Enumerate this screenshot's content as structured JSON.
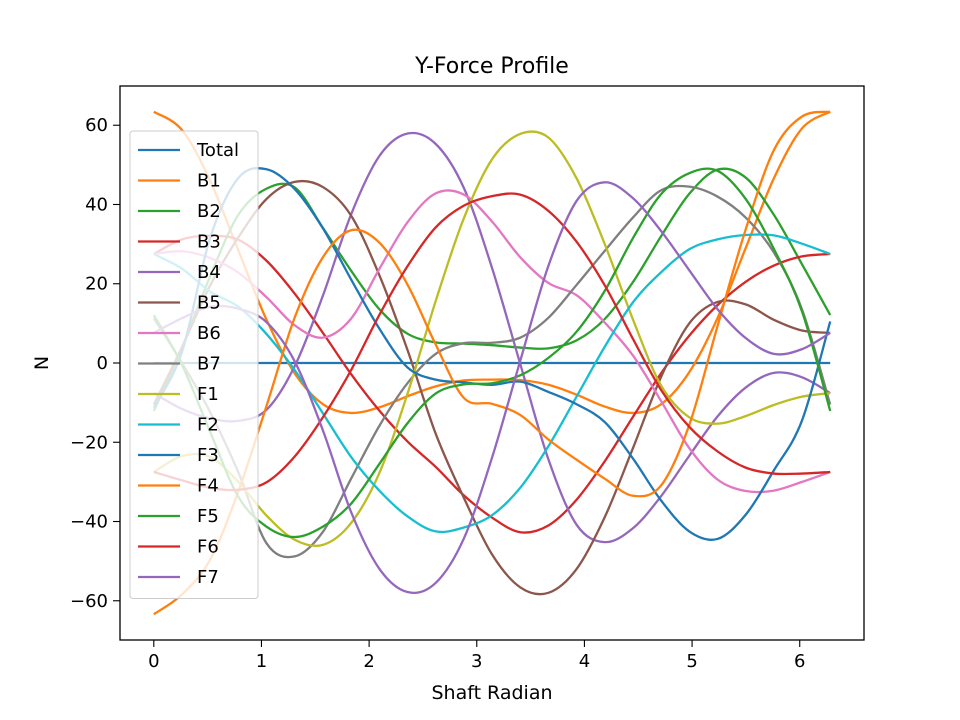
{
  "chart_data": {
    "type": "line",
    "title": "Y-Force Profile",
    "xlabel": "Shaft Radian",
    "ylabel": "N",
    "xlim": [
      -0.314,
      6.597
    ],
    "ylim": [
      -69.9,
      69.9
    ],
    "xticks": [
      0,
      1,
      2,
      3,
      4,
      5,
      6
    ],
    "yticks": [
      -60,
      -40,
      -20,
      0,
      20,
      40,
      60
    ],
    "xtick_labels": [
      "0",
      "1",
      "2",
      "3",
      "4",
      "5",
      "6"
    ],
    "ytick_labels": [
      "−60",
      "−40",
      "−20",
      "0",
      "20",
      "40",
      "60"
    ],
    "grid": false,
    "legend_position": "upper-left",
    "x": [
      0.0,
      0.2618,
      0.5236,
      0.7854,
      1.0472,
      1.309,
      1.5708,
      1.8326,
      2.0944,
      2.3562,
      2.618,
      2.8798,
      3.1416,
      3.4034,
      3.6652,
      3.927,
      4.1888,
      4.4506,
      4.7124,
      4.9742,
      5.236,
      5.4978,
      5.7596,
      6.0214,
      6.2832
    ],
    "series": [
      {
        "name": "Total",
        "color": "#1f77b4",
        "values": [
          0,
          0,
          0,
          0,
          0,
          0,
          0,
          0,
          0,
          0,
          0,
          0,
          0,
          0,
          0,
          0,
          0,
          0,
          0,
          0,
          0,
          0,
          0,
          0,
          0
        ]
      },
      {
        "name": "B1",
        "color": "#ff7f0e",
        "values": [
          63.4,
          58.8,
          46.0,
          28.4,
          10.9,
          -2.6,
          -10.4,
          -12.6,
          -11.2,
          -8.4,
          -5.9,
          -4.4,
          -4.2,
          -4.3,
          -5.5,
          -8.0,
          -11.0,
          -12.6,
          -10.4,
          -2.3,
          11.3,
          29.0,
          46.6,
          59.2,
          63.4
        ]
      },
      {
        "name": "B2",
        "color": "#2ca02c",
        "values": [
          -12.1,
          3.9,
          21.9,
          37.4,
          44.0,
          44.3,
          34.1,
          23.3,
          13.6,
          7.4,
          5.2,
          4.9,
          4.5,
          3.9,
          3.7,
          5.7,
          11.1,
          20.4,
          32.0,
          42.7,
          48.8,
          46.8,
          37.4,
          24.9,
          12.1
        ]
      },
      {
        "name": "B3",
        "color": "#d62728",
        "values": [
          27.5,
          31.2,
          32.1,
          31.1,
          25.8,
          17.5,
          7.6,
          -2.8,
          -12.0,
          -19.8,
          -26.2,
          -33.4,
          -39.0,
          -42.7,
          -41.0,
          -34.5,
          -24.8,
          -13.6,
          -2.6,
          6.9,
          14.6,
          20.5,
          24.6,
          26.9,
          27.5
        ]
      },
      {
        "name": "B4",
        "color": "#9467bd",
        "values": [
          -7.6,
          -11.6,
          -14.0,
          -14.6,
          -11.8,
          -0.8,
          17.0,
          37.5,
          52.2,
          57.9,
          55.3,
          44.2,
          24.0,
          -0.2,
          -24.3,
          -40.8,
          -45.2,
          -41.7,
          -33.6,
          -23.4,
          -13.5,
          -6.2,
          -2.5,
          -3.6,
          -7.6
        ]
      },
      {
        "name": "B5",
        "color": "#8c564b",
        "values": [
          -10.5,
          4.0,
          19.6,
          31.7,
          41.4,
          45.7,
          44.4,
          37.2,
          22.2,
          3.3,
          -17.8,
          -34.0,
          -48.3,
          -56.6,
          -58.0,
          -52.0,
          -38.9,
          -21.5,
          -3.5,
          10.0,
          15.4,
          14.8,
          10.9,
          8.2,
          7.6
        ]
      },
      {
        "name": "B6",
        "color": "#e377c2",
        "values": [
          27.5,
          28.2,
          26.5,
          22.8,
          16.6,
          9.5,
          6.4,
          11.2,
          23.7,
          35.5,
          42.8,
          42.5,
          35.7,
          26.7,
          20.2,
          17.1,
          10.2,
          1.9,
          -9.6,
          -21.5,
          -29.4,
          -32.3,
          -32.2,
          -30.0,
          -27.5
        ]
      },
      {
        "name": "B7",
        "color": "#7f7f7f",
        "values": [
          11.3,
          0.0,
          -12.4,
          -27.6,
          -45.5,
          -48.8,
          -42.6,
          -29.2,
          -15.9,
          -5.1,
          2.3,
          5.0,
          5.1,
          6.4,
          11.4,
          19.7,
          28.3,
          36.7,
          43.6,
          44.5,
          42.0,
          36.7,
          27.9,
          13.5,
          -10.5
        ]
      },
      {
        "name": "F1",
        "color": "#bcbd22",
        "values": [
          -27.5,
          -23.5,
          -23.7,
          -30.0,
          -38.5,
          -44.6,
          -45.9,
          -40.4,
          -27.8,
          -7.8,
          15.6,
          36.5,
          51.4,
          57.8,
          56.9,
          46.6,
          30.0,
          11.0,
          -5.7,
          -13.7,
          -15.3,
          -13.4,
          -10.6,
          -8.5,
          -7.6
        ]
      },
      {
        "name": "F2",
        "color": "#17becf",
        "values": [
          27.5,
          23.8,
          18.0,
          14.2,
          7.3,
          -1.8,
          -12.7,
          -23.7,
          -32.2,
          -38.7,
          -42.5,
          -41.5,
          -38.4,
          -31.5,
          -21.0,
          -8.5,
          4.1,
          15.3,
          22.9,
          28.7,
          31.2,
          32.3,
          32.2,
          30.1,
          27.5
        ]
      },
      {
        "name": "F3",
        "color": "#1f77b4",
        "values": [
          -11.3,
          2.8,
          31.6,
          46.7,
          48.9,
          43.9,
          34.0,
          21.1,
          8.7,
          -1.1,
          -4.2,
          -4.9,
          -5.5,
          -4.7,
          -7.3,
          -10.4,
          -14.9,
          -24.1,
          -34.7,
          -42.5,
          -44.4,
          -38.3,
          -27.1,
          -14.5,
          10.5
        ]
      },
      {
        "name": "F4",
        "color": "#ff7f0e",
        "values": [
          -63.4,
          -58.4,
          -49.6,
          -32.4,
          -10.8,
          11.5,
          26.7,
          33.5,
          30.4,
          19.8,
          4.7,
          -8.8,
          -10.3,
          -13.1,
          -19.3,
          -24.4,
          -29.2,
          -33.5,
          -30.9,
          -15.6,
          9.3,
          33.7,
          53.7,
          62.2,
          63.4
        ]
      },
      {
        "name": "F5",
        "color": "#2ca02c",
        "values": [
          12.1,
          -0.5,
          -17.4,
          -33.8,
          -41.3,
          -43.9,
          -41.3,
          -35.5,
          -25.5,
          -15.2,
          -7.7,
          -5.4,
          -5.1,
          -3.1,
          1.3,
          7.9,
          18.2,
          31.5,
          42.6,
          47.9,
          48.5,
          41.4,
          28.8,
          13.0,
          -12.1
        ]
      },
      {
        "name": "F6",
        "color": "#d62728",
        "values": [
          -27.5,
          -29.6,
          -31.5,
          -32.0,
          -30.1,
          -23.6,
          -13.7,
          -1.8,
          12.1,
          24.4,
          34.2,
          39.7,
          42.1,
          42.5,
          38.4,
          30.6,
          19.6,
          6.1,
          -6.8,
          -16.1,
          -22.3,
          -26.4,
          -27.9,
          -27.9,
          -27.5
        ]
      },
      {
        "name": "F7",
        "color": "#9467bd",
        "values": [
          7.6,
          11.3,
          14.2,
          13.7,
          10.3,
          0.4,
          -17.0,
          -37.6,
          -51.9,
          -57.8,
          -55.5,
          -44.3,
          -23.9,
          0.5,
          24.5,
          40.9,
          45.6,
          41.6,
          33.3,
          23.4,
          13.6,
          6.3,
          2.3,
          3.5,
          7.6
        ]
      }
    ]
  }
}
